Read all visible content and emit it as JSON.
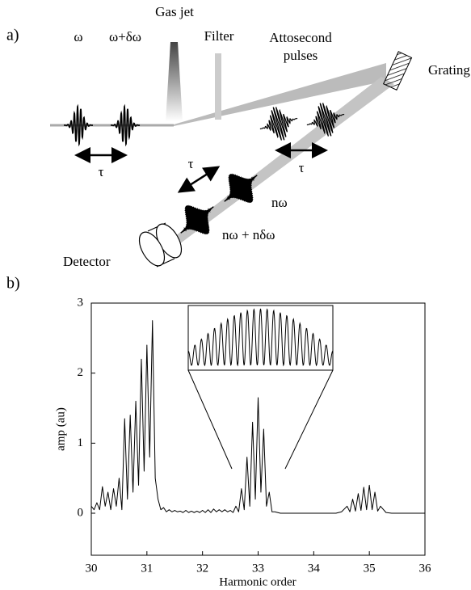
{
  "diagram": {
    "panel_label": "a)",
    "omega": "ω",
    "omega_shift": "ω+δω",
    "gas_jet": "Gas jet",
    "filter": "Filter",
    "attosecond": "Attosecond",
    "pulses": "pulses",
    "grating": "Grating",
    "tau_in": "τ",
    "tau_out": "τ",
    "tau_diag": "τ",
    "n_omega": "nω",
    "n_omega_shift": "nω + nδω",
    "detector": "Detector"
  },
  "chart_data": {
    "type": "line",
    "panel_label": "b)",
    "xlabel": "Harmonic order",
    "ylabel": "amp (au)",
    "x": [
      30.0,
      30.05,
      30.1,
      30.15,
      30.2,
      30.25,
      30.3,
      30.35,
      30.4,
      30.45,
      30.5,
      30.55,
      30.6,
      30.65,
      30.7,
      30.75,
      30.8,
      30.85,
      30.9,
      30.95,
      31.0,
      31.05,
      31.1,
      31.15,
      31.2,
      31.25,
      31.3,
      31.35,
      31.4,
      31.45,
      31.5,
      31.55,
      31.6,
      31.65,
      31.7,
      31.75,
      31.8,
      31.85,
      31.9,
      31.95,
      32.0,
      32.05,
      32.1,
      32.15,
      32.2,
      32.25,
      32.3,
      32.35,
      32.4,
      32.45,
      32.5,
      32.55,
      32.6,
      32.65,
      32.7,
      32.75,
      32.8,
      32.85,
      32.9,
      32.95,
      33.0,
      33.05,
      33.1,
      33.15,
      33.2,
      33.25,
      33.3,
      33.4,
      33.6,
      33.8,
      34.0,
      34.2,
      34.4,
      34.5,
      34.6,
      34.65,
      34.7,
      34.75,
      34.8,
      34.85,
      34.9,
      34.95,
      35.0,
      35.05,
      35.1,
      35.15,
      35.2,
      35.3,
      35.4,
      35.6,
      35.8,
      36.0
    ],
    "series": [
      {
        "color": "#000000",
        "values": [
          0.1,
          0.05,
          0.15,
          0.05,
          0.38,
          0.1,
          0.3,
          0.05,
          0.35,
          0.1,
          0.5,
          0.05,
          1.35,
          0.2,
          1.4,
          0.3,
          1.6,
          0.4,
          2.2,
          0.6,
          2.4,
          0.8,
          2.75,
          0.5,
          0.2,
          0.05,
          0.08,
          0.02,
          0.05,
          0.02,
          0.04,
          0.02,
          0.03,
          0.01,
          0.04,
          0.01,
          0.03,
          0.01,
          0.03,
          0.01,
          0.04,
          0.01,
          0.05,
          0.01,
          0.06,
          0.02,
          0.05,
          0.02,
          0.05,
          0.02,
          0.04,
          0.01,
          0.1,
          0.02,
          0.35,
          0.05,
          0.8,
          0.1,
          1.3,
          0.2,
          1.65,
          0.3,
          1.2,
          0.1,
          0.3,
          0.02,
          0.02,
          0,
          0,
          0,
          0,
          0,
          0,
          0.02,
          0.1,
          0.02,
          0.2,
          0.03,
          0.28,
          0.04,
          0.37,
          0.05,
          0.4,
          0.05,
          0.3,
          0.03,
          0.1,
          0.01,
          0,
          0,
          0,
          0
        ]
      }
    ],
    "xlim": [
      30,
      36
    ],
    "xticks": [
      30,
      31,
      32,
      33,
      34,
      35,
      36
    ],
    "ylim": [
      -0.6,
      3
    ],
    "yticks": [
      0,
      1,
      2,
      3
    ]
  }
}
